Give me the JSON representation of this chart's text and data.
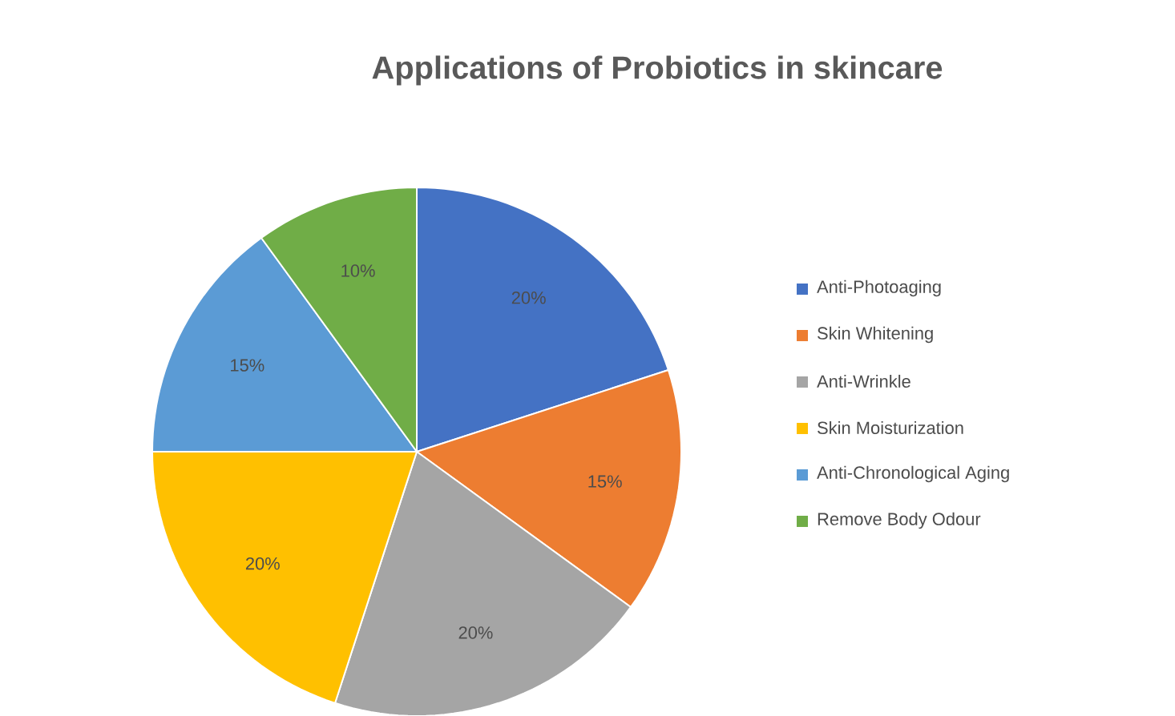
{
  "chart_data": {
    "type": "pie",
    "title": "Applications of Probiotics in skincare",
    "categories": [
      "Anti-Photoaging",
      "Skin Whitening",
      "Anti-Wrinkle",
      "Skin Moisturization",
      "Anti-Chronological Aging",
      "Remove Body Odour"
    ],
    "values": [
      20,
      15,
      20,
      20,
      15,
      10
    ],
    "colors": [
      "#4472c4",
      "#ed7d31",
      "#a5a5a5",
      "#ffc000",
      "#5b9bd5",
      "#70ad47"
    ],
    "value_labels": [
      "20%",
      "15%",
      "20%",
      "20%",
      "15%",
      "10%"
    ],
    "legend": "right"
  }
}
